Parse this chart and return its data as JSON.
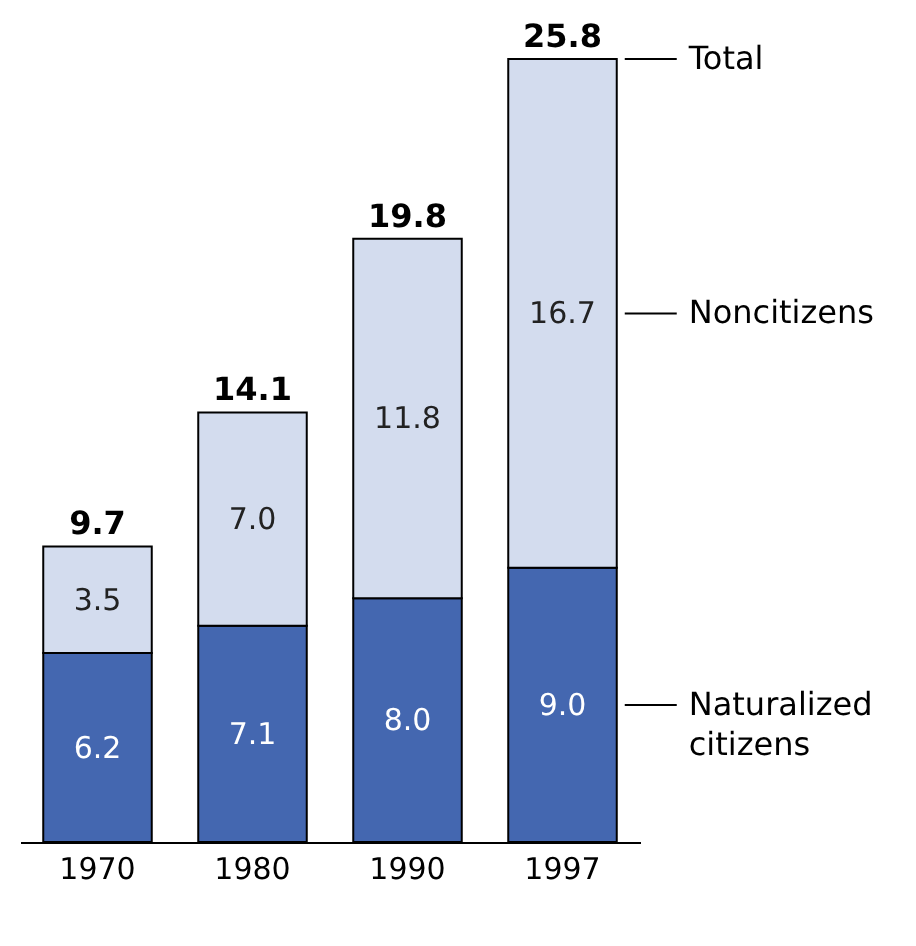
{
  "chart_data": {
    "type": "bar",
    "stacked": true,
    "categories": [
      "1970",
      "1980",
      "1990",
      "1997"
    ],
    "series": [
      {
        "name": "Naturalized citizens",
        "color": "#4467b0",
        "values": [
          6.2,
          7.1,
          8.0,
          9.0
        ],
        "value_labels": [
          "6.2",
          "7.1",
          "8.0",
          "9.0"
        ]
      },
      {
        "name": "Noncitizens",
        "color": "#d3dcee",
        "values": [
          3.5,
          7.0,
          11.8,
          16.7
        ],
        "value_labels": [
          "3.5",
          "7.0",
          "11.8",
          "16.7"
        ]
      }
    ],
    "legend": "right",
    "totals": [
      "9.7",
      "14.1",
      "19.8",
      "25.8"
    ],
    "annotations": [
      "Total"
    ]
  }
}
